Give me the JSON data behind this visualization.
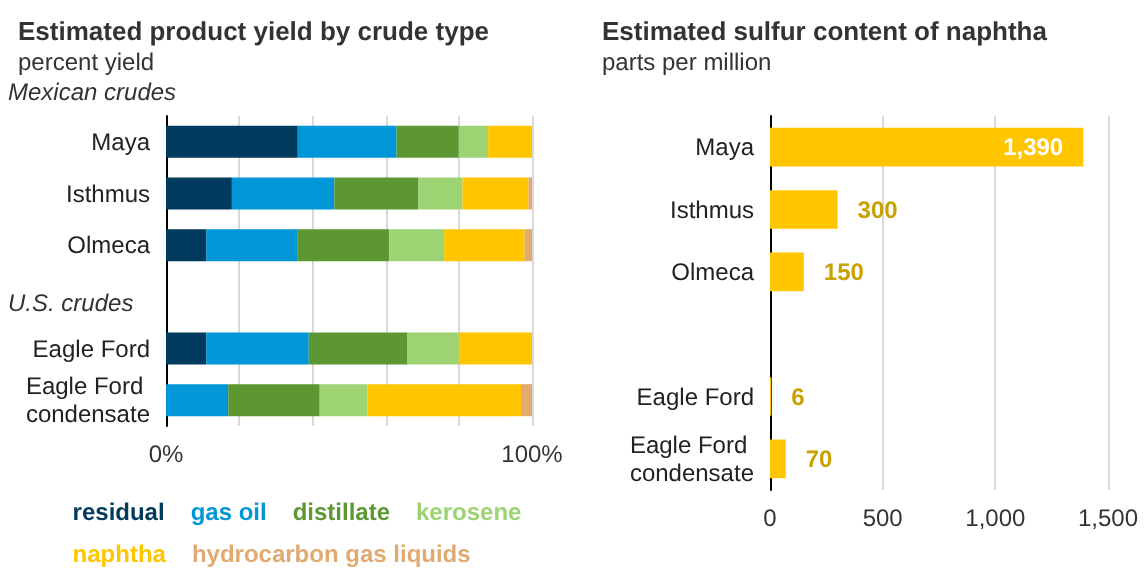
{
  "chart_data": [
    {
      "type": "bar",
      "orientation": "horizontal",
      "stacked": true,
      "title": "Estimated product yield by crude type",
      "subtitle": "percent yield",
      "categories": [
        "Maya",
        "Isthmus",
        "Olmeca",
        null,
        "Eagle Ford",
        "Eagle Ford condensate"
      ],
      "series": [
        {
          "name": "residual",
          "color": "#003a5c",
          "values": [
            36,
            18,
            11,
            null,
            11,
            0
          ]
        },
        {
          "name": "gas oil",
          "color": "#0096d7",
          "values": [
            27,
            28,
            25,
            null,
            28,
            17
          ]
        },
        {
          "name": "distillate",
          "color": "#5d9732",
          "values": [
            17,
            23,
            25,
            null,
            27,
            25
          ]
        },
        {
          "name": "kerosene",
          "color": "#9dd373",
          "values": [
            8,
            12,
            15,
            null,
            14,
            13
          ]
        },
        {
          "name": "naphtha",
          "color": "#ffc600",
          "values": [
            12,
            18,
            22,
            null,
            20,
            42
          ]
        },
        {
          "name": "hydrocarbon gas liquids",
          "color": "#e1aa72",
          "values": [
            0,
            1,
            2,
            null,
            0,
            3
          ]
        }
      ],
      "xlim": [
        0,
        100
      ],
      "xticks": [
        {
          "value": 0,
          "label": "0%"
        },
        {
          "value": 20,
          "label": null
        },
        {
          "value": 40,
          "label": null
        },
        {
          "value": 60,
          "label": null
        },
        {
          "value": 80,
          "label": null
        },
        {
          "value": 100,
          "label": "100%"
        }
      ],
      "grid": "x",
      "legend": "bottom",
      "annotations": [
        "Mexican crudes",
        "U.S. crudes"
      ]
    },
    {
      "type": "bar",
      "orientation": "horizontal",
      "title": "Estimated sulfur content of naphtha",
      "subtitle": "parts per million",
      "categories": [
        "Maya",
        "Isthmus",
        "Olmeca",
        null,
        "Eagle Ford",
        "Eagle Ford condensate"
      ],
      "values": [
        1390,
        300,
        150,
        null,
        6,
        70
      ],
      "color": "#ffc600",
      "value_labels": [
        "1,390",
        "300",
        "150",
        null,
        "6",
        "70"
      ],
      "xlim": [
        0,
        1500
      ],
      "xticks": [
        0,
        500,
        {
          "value": 1000,
          "label": "1,000"
        },
        {
          "value": 1500,
          "label": "1,500"
        }
      ],
      "grid": "x"
    }
  ]
}
